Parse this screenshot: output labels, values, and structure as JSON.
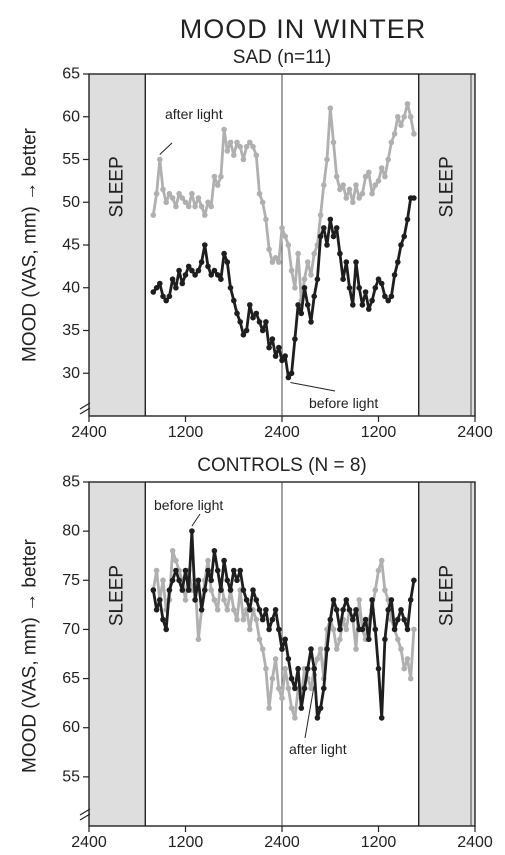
{
  "figure_title": "MOOD IN WINTER",
  "colors": {
    "before": "#1e1e1e",
    "after": "#b0b0b0",
    "sleep": "#dedede"
  },
  "chart_data": [
    {
      "type": "line",
      "title": "SAD (n=11)",
      "ylabel": "MOOD (VAS, mm) → better",
      "ylim": [
        25,
        65
      ],
      "yticks": [
        30,
        35,
        40,
        45,
        50,
        55,
        60,
        65
      ],
      "xlim": [
        0,
        48
      ],
      "xtick_positions": [
        0,
        12,
        24,
        36,
        48
      ],
      "xticks": [
        "2400",
        "1200",
        "2400",
        "1200",
        "2400"
      ],
      "midline_x": 24,
      "sleep_regions": [
        [
          0,
          7
        ],
        [
          41,
          48
        ]
      ],
      "sleep_label": "SLEEP",
      "series": [
        {
          "name": "before light",
          "color": "#1e1e1e",
          "x": [
            8.0,
            8.4,
            8.8,
            9.2,
            9.6,
            10.0,
            10.4,
            10.8,
            11.2,
            11.6,
            12.0,
            12.4,
            12.8,
            13.2,
            13.6,
            14.0,
            14.4,
            14.8,
            15.2,
            15.6,
            16.0,
            16.4,
            16.8,
            17.2,
            17.6,
            18.0,
            18.4,
            18.8,
            19.2,
            19.6,
            20.0,
            20.4,
            20.8,
            21.2,
            21.6,
            22.0,
            22.4,
            22.8,
            23.2,
            23.6,
            24.0,
            24.4,
            24.8,
            25.2,
            25.6,
            26.0,
            26.4,
            26.8,
            27.2,
            27.6,
            28.0,
            28.4,
            28.8,
            29.2,
            29.6,
            30.0,
            30.4,
            30.8,
            31.2,
            31.6,
            32.0,
            32.4,
            32.8,
            33.2,
            33.6,
            34.0,
            34.4,
            34.8,
            35.2,
            35.6,
            36.0,
            36.4,
            36.8,
            37.2,
            37.6,
            38.0,
            38.4,
            38.8,
            39.2,
            39.6,
            40.0,
            40.4
          ],
          "y": [
            39.5,
            40,
            40.5,
            39,
            38.5,
            39,
            41,
            40,
            42,
            40.5,
            41.5,
            42.5,
            42,
            41.5,
            42,
            43,
            45,
            42.5,
            41.5,
            42,
            41.5,
            41,
            44,
            43,
            40,
            38.5,
            37,
            36,
            34.5,
            35,
            38,
            36.5,
            37,
            36,
            35,
            36,
            33,
            34,
            32,
            33,
            31.5,
            32,
            29.5,
            30,
            34,
            38,
            37,
            40,
            38,
            36,
            39,
            41,
            46,
            47,
            45,
            48,
            46,
            47,
            44,
            41,
            43,
            40,
            38,
            43,
            40,
            38,
            39.5,
            37.5,
            38.5,
            40,
            41,
            40.5,
            39,
            38.5,
            39,
            41.5,
            43,
            45,
            46,
            48,
            50.5,
            50.5
          ]
        },
        {
          "name": "after light",
          "color": "#b0b0b0",
          "x": [
            8.0,
            8.4,
            8.8,
            9.2,
            9.6,
            10.0,
            10.4,
            10.8,
            11.2,
            11.6,
            12.0,
            12.4,
            12.8,
            13.2,
            13.6,
            14.0,
            14.4,
            14.8,
            15.2,
            15.6,
            16.0,
            16.4,
            16.8,
            17.2,
            17.6,
            18.0,
            18.4,
            18.8,
            19.2,
            19.6,
            20.0,
            20.4,
            20.8,
            21.2,
            21.6,
            22.0,
            22.4,
            22.8,
            23.2,
            23.6,
            24.0,
            24.4,
            24.8,
            25.2,
            25.6,
            26.0,
            26.4,
            26.8,
            27.2,
            27.6,
            28.0,
            28.4,
            28.8,
            29.2,
            29.6,
            30.0,
            30.4,
            30.8,
            31.2,
            31.6,
            32.0,
            32.4,
            32.8,
            33.2,
            33.6,
            34.0,
            34.4,
            34.8,
            35.2,
            35.6,
            36.0,
            36.4,
            36.8,
            37.2,
            37.6,
            38.0,
            38.4,
            38.8,
            39.2,
            39.6,
            40.0,
            40.4
          ],
          "y": [
            48.5,
            51,
            55,
            51.5,
            50,
            51,
            50.5,
            49.5,
            51,
            50.5,
            50,
            49.5,
            51,
            49.5,
            50.5,
            49.5,
            48.5,
            50,
            49.5,
            53,
            52,
            53,
            58.5,
            56,
            57,
            55.5,
            57,
            56.5,
            55,
            56.5,
            57,
            56.5,
            55.5,
            51,
            50,
            48,
            44.5,
            43,
            43.5,
            43,
            47,
            46,
            45,
            42,
            40,
            44,
            38.5,
            41,
            43,
            41.5,
            44,
            45,
            48.5,
            52,
            55,
            61,
            57,
            53,
            51.5,
            52,
            50.5,
            51.5,
            50,
            52,
            50.5,
            51,
            53,
            53.5,
            51,
            52,
            52.5,
            54,
            53,
            55,
            57,
            58,
            60,
            59,
            60,
            61.5,
            60,
            58
          ]
        }
      ],
      "annotations": [
        {
          "text": "after light",
          "series": "after light"
        },
        {
          "text": "before light",
          "series": "before light"
        }
      ]
    },
    {
      "type": "line",
      "title": "CONTROLS (N = 8)",
      "ylabel": "MOOD (VAS, mm) → better",
      "ylim": [
        50,
        85
      ],
      "yticks": [
        55,
        60,
        65,
        70,
        75,
        80,
        85
      ],
      "xlim": [
        0,
        48
      ],
      "xtick_positions": [
        0,
        12,
        24,
        36,
        48
      ],
      "xticks": [
        "2400",
        "1200",
        "2400",
        "1200",
        "2400"
      ],
      "midline_x": 24,
      "sleep_regions": [
        [
          0,
          7
        ],
        [
          41,
          48
        ]
      ],
      "sleep_label": "SLEEP",
      "series": [
        {
          "name": "before light",
          "color": "#1e1e1e",
          "x": [
            8.0,
            8.4,
            8.8,
            9.2,
            9.6,
            10.0,
            10.4,
            10.8,
            11.2,
            11.6,
            12.0,
            12.4,
            12.8,
            13.2,
            13.6,
            14.0,
            14.4,
            14.8,
            15.2,
            15.6,
            16.0,
            16.4,
            16.8,
            17.2,
            17.6,
            18.0,
            18.4,
            18.8,
            19.2,
            19.6,
            20.0,
            20.4,
            20.8,
            21.2,
            21.6,
            22.0,
            22.4,
            22.8,
            23.2,
            23.6,
            24.0,
            24.4,
            24.8,
            25.2,
            25.6,
            26.0,
            26.4,
            26.8,
            27.2,
            27.6,
            28.0,
            28.4,
            28.8,
            29.2,
            29.6,
            30.0,
            30.4,
            30.8,
            31.2,
            31.6,
            32.0,
            32.4,
            32.8,
            33.2,
            33.6,
            34.0,
            34.4,
            34.8,
            35.2,
            35.6,
            36.0,
            36.4,
            36.8,
            37.2,
            37.6,
            38.0,
            38.4,
            38.8,
            39.2,
            39.6,
            40.0,
            40.4
          ],
          "y": [
            74,
            72,
            73,
            71,
            70,
            74,
            75,
            76,
            75,
            74,
            76,
            74,
            80,
            73,
            75,
            72,
            74,
            76,
            75,
            78,
            76,
            74,
            77,
            75,
            74,
            76,
            75,
            76,
            74,
            73,
            72,
            74,
            73,
            72,
            71,
            72,
            70,
            71,
            72,
            70,
            68,
            69,
            67,
            65,
            64,
            66,
            62,
            64,
            66,
            68,
            66,
            61,
            62,
            64,
            68,
            71,
            73,
            72,
            70,
            72,
            73,
            72,
            71,
            72,
            70,
            70,
            71,
            69,
            73,
            70,
            66,
            61,
            69,
            72,
            73,
            70,
            71,
            72,
            71,
            70,
            73,
            75
          ]
        },
        {
          "name": "after light",
          "color": "#b0b0b0",
          "x": [
            8.0,
            8.4,
            8.8,
            9.2,
            9.6,
            10.0,
            10.4,
            10.8,
            11.2,
            11.6,
            12.0,
            12.4,
            12.8,
            13.2,
            13.6,
            14.0,
            14.4,
            14.8,
            15.2,
            15.6,
            16.0,
            16.4,
            16.8,
            17.2,
            17.6,
            18.0,
            18.4,
            18.8,
            19.2,
            19.6,
            20.0,
            20.4,
            20.8,
            21.2,
            21.6,
            22.0,
            22.4,
            22.8,
            23.2,
            23.6,
            24.0,
            24.4,
            24.8,
            25.2,
            25.6,
            26.0,
            26.4,
            26.8,
            27.2,
            27.6,
            28.0,
            28.4,
            28.8,
            29.2,
            29.6,
            30.0,
            30.4,
            30.8,
            31.2,
            31.6,
            32.0,
            32.4,
            32.8,
            33.2,
            33.6,
            34.0,
            34.4,
            34.8,
            35.2,
            35.6,
            36.0,
            36.4,
            36.8,
            37.2,
            37.6,
            38.0,
            38.4,
            38.8,
            39.2,
            39.6,
            40.0,
            40.4
          ],
          "y": [
            74,
            76,
            73,
            75,
            72,
            73,
            78,
            77,
            76,
            75,
            73,
            76,
            74,
            75,
            69,
            72,
            75,
            77,
            74,
            73,
            72,
            75,
            73,
            72,
            74,
            72,
            71,
            74,
            71,
            72,
            70,
            72,
            71,
            69,
            68,
            66,
            62,
            65,
            67,
            64,
            63,
            66,
            64,
            62,
            61,
            64,
            63,
            66,
            65,
            64,
            66,
            67,
            68,
            65,
            70,
            71,
            70,
            68,
            69,
            71,
            70,
            72,
            71,
            68,
            73,
            70,
            69,
            71,
            72,
            74,
            76,
            77,
            74,
            73,
            71,
            70,
            69,
            68,
            66,
            67,
            65,
            70
          ]
        }
      ],
      "annotations": [
        {
          "text": "before light",
          "series": "before light"
        },
        {
          "text": "after light",
          "series": "after light"
        }
      ]
    }
  ]
}
